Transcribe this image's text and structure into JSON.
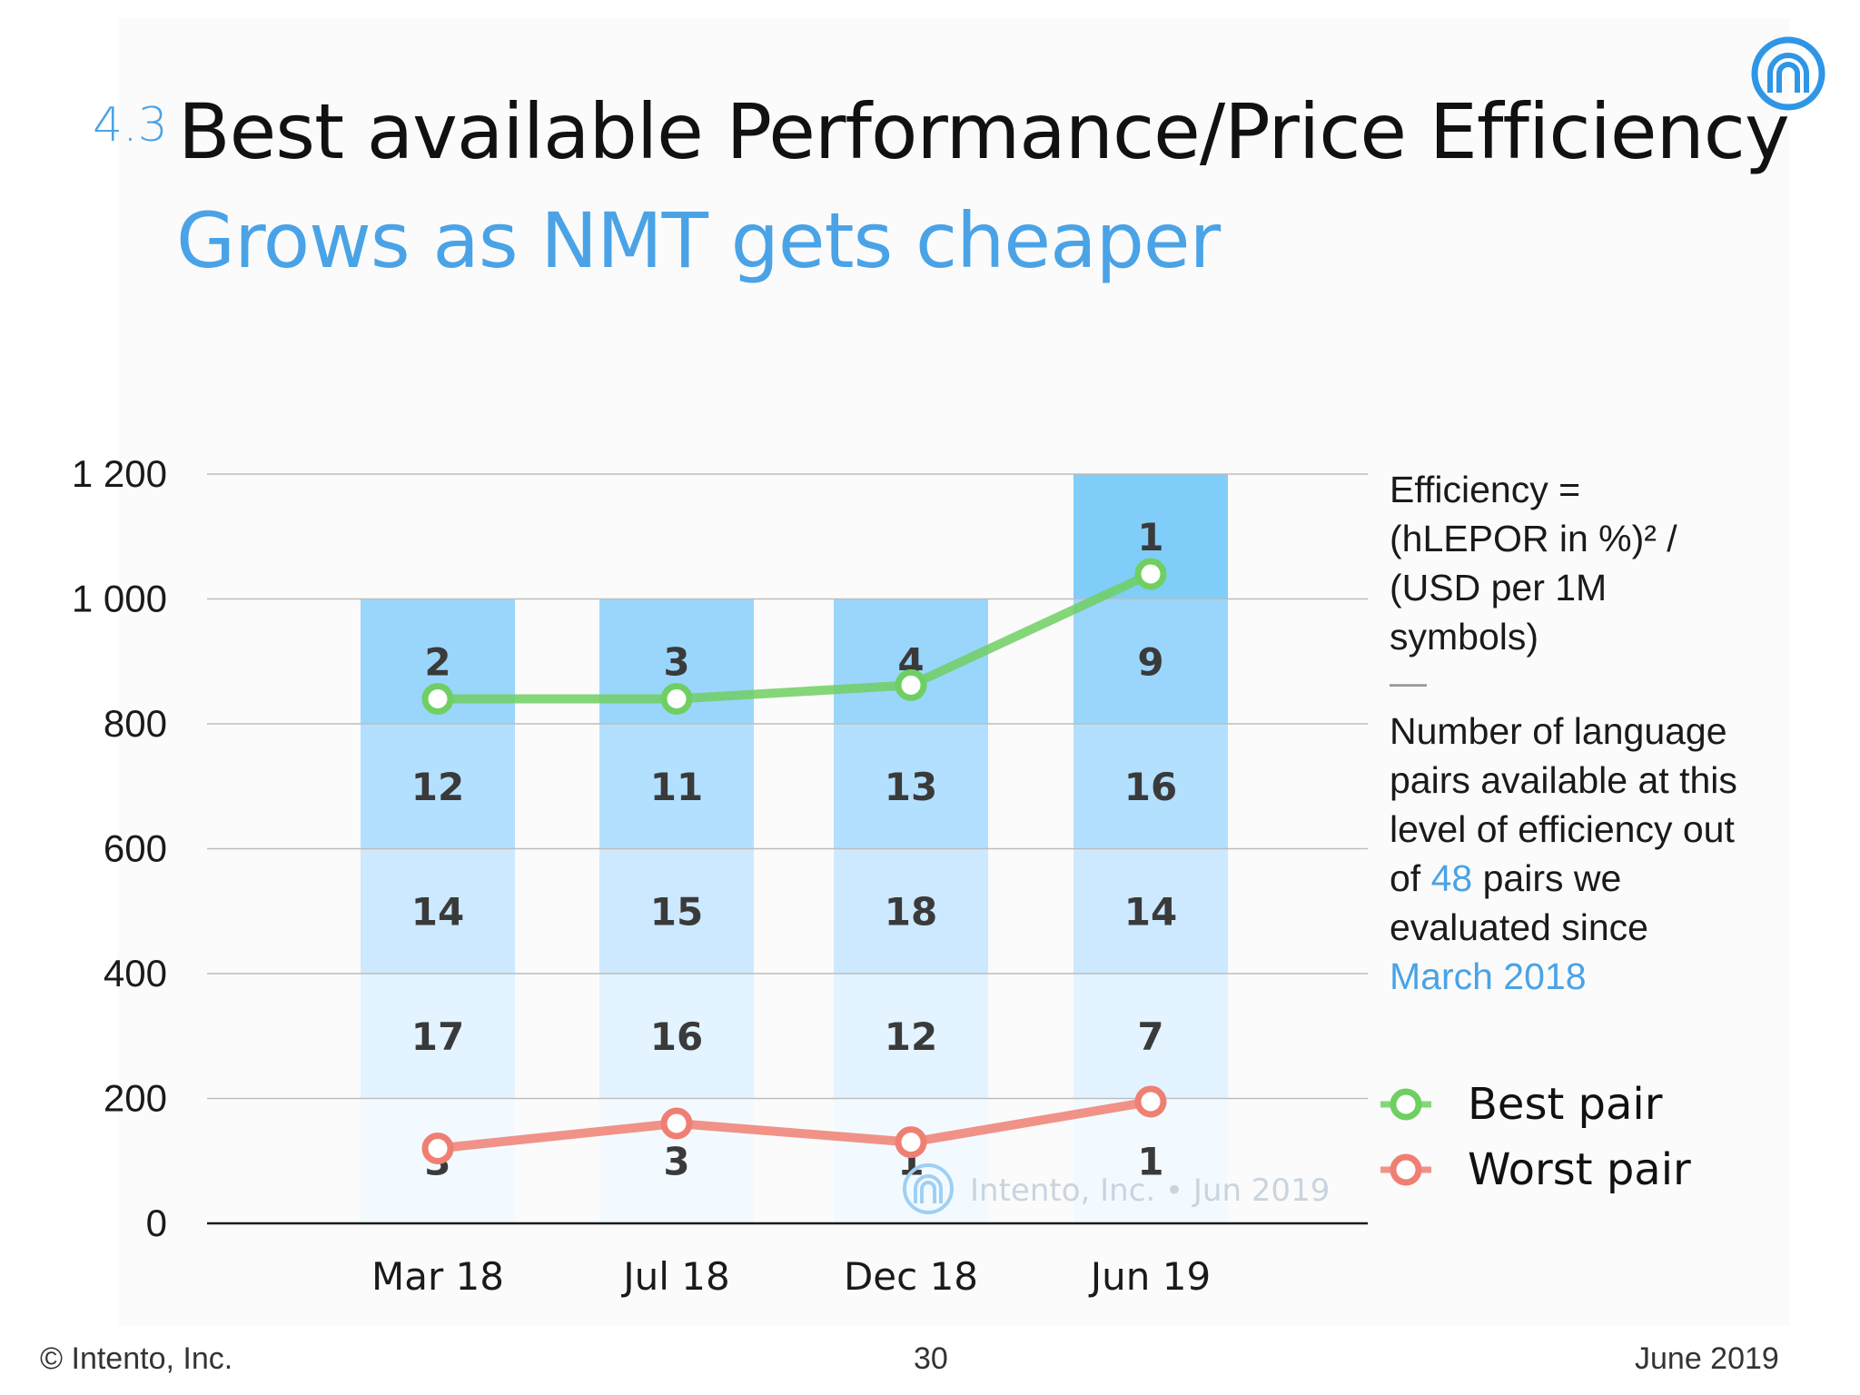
{
  "header": {
    "section_number": "4.3",
    "title": "Best available Performance/Price Efficiency",
    "subtitle": "Grows as NMT gets cheaper"
  },
  "side_note": {
    "line1": "Efficiency =",
    "line2": "(hLEPOR in %)² /",
    "line3": "(USD per 1M",
    "line4": "symbols)",
    "dash": "—",
    "desc_a": "Number of language pairs available at this level of efficiency out of",
    "desc_num": "48",
    "desc_b": "pairs we evaluated since",
    "desc_date": "March 2018"
  },
  "legend": {
    "best": "Best pair",
    "worst": "Worst pair"
  },
  "watermark": "Intento, Inc. • Jun 2019",
  "footer": {
    "left": "© Intento, Inc.",
    "page": "30",
    "right": "June 2019"
  },
  "colors": {
    "best_line": "#6fcf62",
    "worst_line": "#ef7f73",
    "bar_bands": [
      "#f3faff",
      "#e3f3ff",
      "#cce9ff",
      "#b3e0ff",
      "#9ad6fb",
      "#80cdfa"
    ],
    "grid": "#bdbdbd",
    "accent": "#4aa3e6"
  },
  "chart_data": {
    "type": "bar",
    "categories": [
      "Mar 18",
      "Jul 18",
      "Dec 18",
      "Jun 19"
    ],
    "ylim": [
      0,
      1200
    ],
    "yticks": [
      0,
      200,
      400,
      600,
      800,
      1000,
      1200
    ],
    "ytick_labels": [
      "0",
      "200",
      "400",
      "600",
      "800",
      "1 000",
      "1 200"
    ],
    "band_counts": [
      [
        "3",
        "17",
        "14",
        "12",
        "2",
        null
      ],
      [
        "3",
        "16",
        "15",
        "11",
        "3",
        null
      ],
      [
        "1",
        "12",
        "18",
        "13",
        "4",
        null
      ],
      [
        "1",
        "7",
        "14",
        "16",
        "9",
        "1"
      ]
    ],
    "bar_tops": [
      1000,
      1000,
      1000,
      1200
    ],
    "series": [
      {
        "name": "Best pair",
        "values": [
          840,
          840,
          862,
          1040
        ]
      },
      {
        "name": "Worst pair",
        "values": [
          120,
          160,
          130,
          195
        ]
      }
    ],
    "grid": true,
    "legend_position": "right"
  }
}
